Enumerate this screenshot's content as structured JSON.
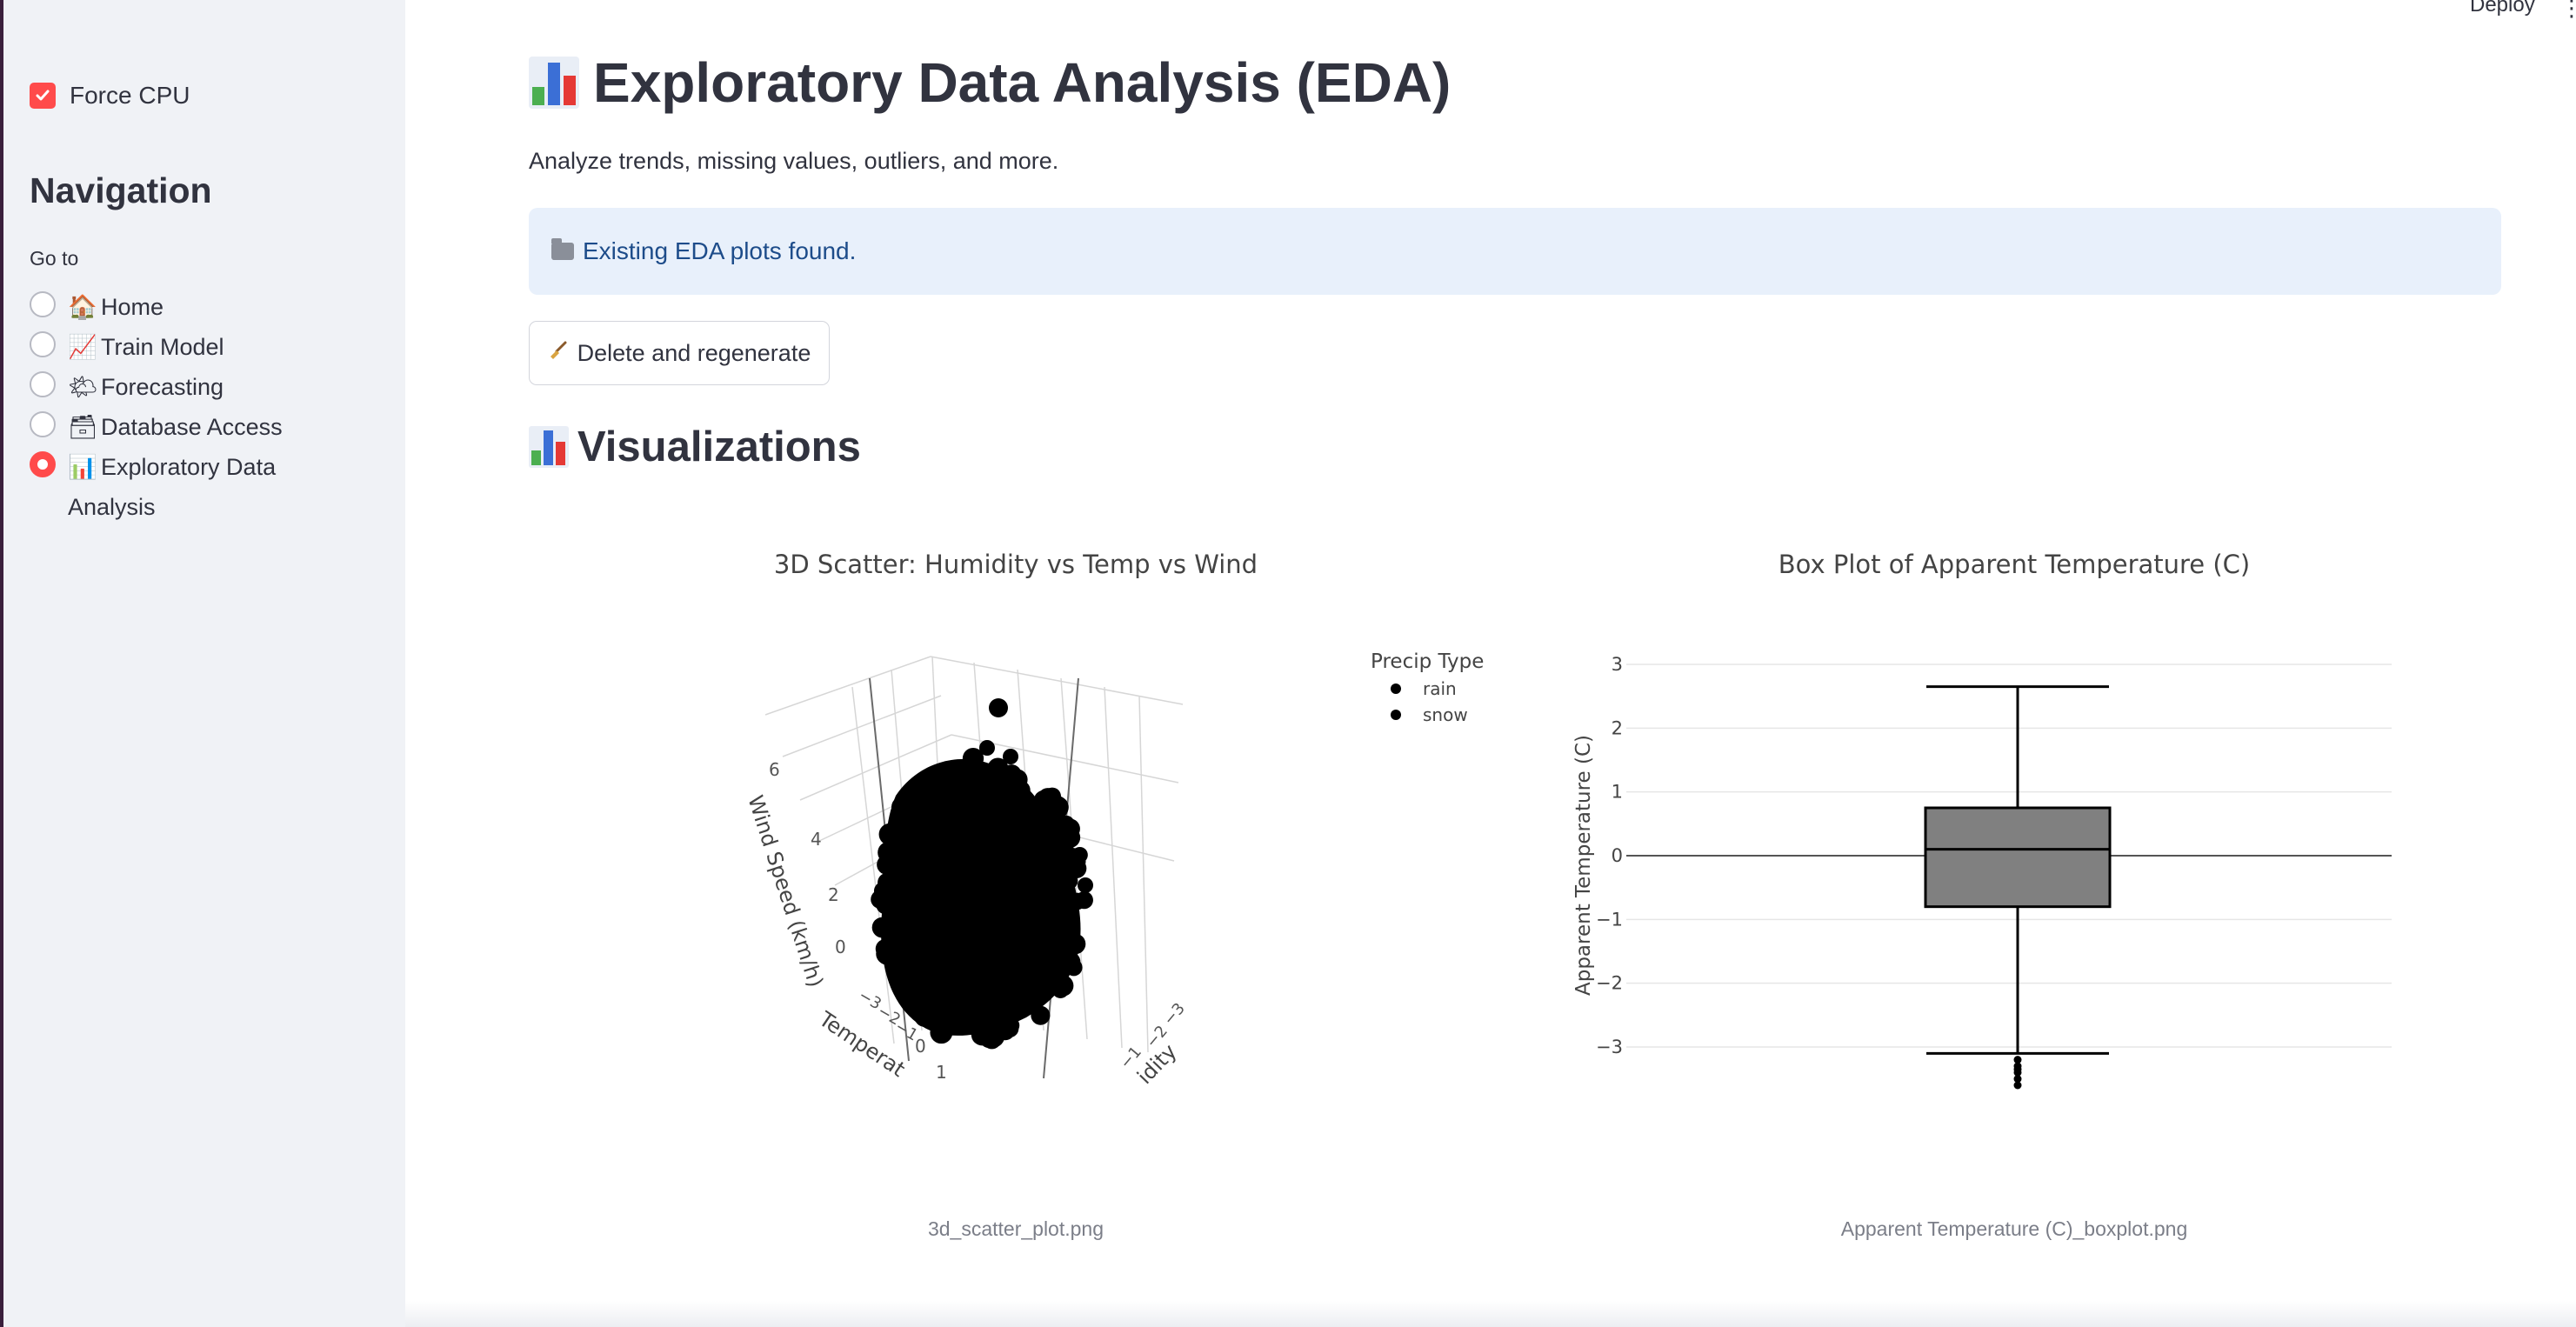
{
  "sidebar": {
    "force_cpu_label": "Force CPU",
    "force_cpu_checked": true,
    "nav_title": "Navigation",
    "goto_label": "Go to",
    "items": [
      {
        "icon": "house-icon",
        "glyph": "🏠",
        "label": "Home",
        "selected": false
      },
      {
        "icon": "chart-up-icon",
        "glyph": "📈",
        "label": "Train Model",
        "selected": false
      },
      {
        "icon": "sun-cloud-icon",
        "glyph": "🌤",
        "label": "Forecasting",
        "selected": false
      },
      {
        "icon": "card-box-icon",
        "glyph": "🗃",
        "label": "Database Access",
        "selected": false
      },
      {
        "icon": "bar-chart-icon",
        "glyph": "📊",
        "label": "Exploratory Data Analysis",
        "selected": true
      }
    ]
  },
  "header": {
    "deploy_label": "Deploy",
    "menu_glyph": "⋮"
  },
  "main": {
    "title": "Exploratory Data Analysis (EDA)",
    "subtitle": "Analyze trends, missing values, outliers, and more.",
    "info_message": "Existing EDA plots found.",
    "regenerate_button": "Delete and regenerate",
    "section_title": "Visualizations"
  },
  "figures": [
    {
      "title": "3D Scatter: Humidity vs Temp vs Wind",
      "caption": "3d_scatter_plot.png",
      "legend_title": "Precip Type",
      "legend_items": [
        "rain",
        "snow"
      ],
      "z_axis_label": "Wind Speed (km/h)",
      "x_axis_label": "Temperat",
      "y_axis_label": "idity",
      "z_ticks": [
        "6",
        "4",
        "2",
        "0"
      ],
      "x_ticks": [
        "−3",
        "−2",
        "−1",
        "0",
        "1"
      ],
      "y_ticks": [
        "−3",
        "−2",
        "−1"
      ]
    },
    {
      "title": "Box Plot of Apparent Temperature (C)",
      "caption": "Apparent Temperature (C)_boxplot.png",
      "y_axis_label": "Apparent Temperature (C)",
      "y_ticks": [
        "3",
        "2",
        "1",
        "0",
        "−1",
        "−2",
        "−3"
      ]
    }
  ],
  "chart_data": [
    {
      "type": "scatter",
      "title": "3D Scatter: Humidity vs Temp vs Wind",
      "xlabel": "Temperature",
      "ylabel": "Humidity",
      "zlabel": "Wind Speed (km/h)",
      "legend": {
        "title": "Precip Type",
        "entries": [
          "rain",
          "snow"
        ],
        "placement": "top-right"
      },
      "zlim": [
        -0.5,
        7
      ],
      "series": [
        {
          "name": "rain",
          "color": "#000000"
        },
        {
          "name": "snow",
          "color": "#000000"
        }
      ]
    },
    {
      "type": "box",
      "title": "Box Plot of Apparent Temperature (C)",
      "ylabel": "Apparent Temperature (C)",
      "ylim": [
        -3.6,
        3.3
      ],
      "box": {
        "whisker_high": 2.65,
        "q3": 0.75,
        "median": 0.1,
        "q1": -0.8,
        "whisker_low": -3.1,
        "outliers": [
          -3.2,
          -3.3,
          -3.35,
          -3.4,
          -3.5,
          -3.6
        ]
      },
      "grid": true,
      "color": "#808080"
    }
  ],
  "colors": {
    "accent": "#ff4b4b",
    "info_bg": "#e8f0fb",
    "info_text": "#1d4c8a",
    "sidebar_bg": "#f0f2f6"
  }
}
